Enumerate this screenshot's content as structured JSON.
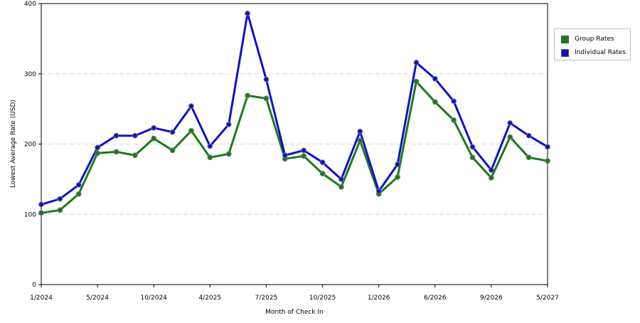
{
  "chart_data": {
    "type": "line",
    "title": "",
    "xlabel": "Month of Check In",
    "ylabel": "Lowest Average Rate (USD)",
    "ylim": [
      0,
      400
    ],
    "yticks": [
      0,
      100,
      200,
      300,
      400
    ],
    "grid": true,
    "legend_position": "right",
    "x_tick_labels": [
      "1/2024",
      "5/2024",
      "10/2024",
      "4/2025",
      "7/2025",
      "10/2025",
      "1/2026",
      "6/2026",
      "9/2026",
      "5/2027"
    ],
    "series": [
      {
        "name": "Group Rates",
        "color": "#1a7a1a",
        "values": [
          102,
          106,
          129,
          187,
          189,
          184,
          208,
          191,
          219,
          181,
          186,
          269,
          265,
          179,
          183,
          158,
          139,
          205,
          129,
          153,
          289,
          260,
          234,
          181,
          152,
          210,
          181,
          176
        ]
      },
      {
        "name": "Individual Rates",
        "color": "#1010cc",
        "values": [
          114,
          122,
          142,
          195,
          212,
          212,
          223,
          217,
          254,
          197,
          228,
          386,
          292,
          184,
          191,
          174,
          150,
          218,
          133,
          171,
          316,
          293,
          261,
          196,
          163,
          230,
          212,
          196
        ]
      }
    ]
  }
}
